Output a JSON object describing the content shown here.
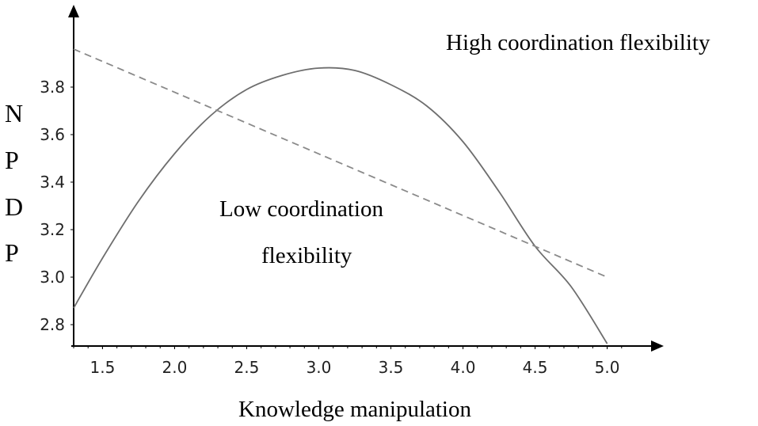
{
  "chart_data": {
    "type": "line",
    "xlabel": "Knowledge manipulation",
    "ylabel": "NPDP",
    "ylabel_letters": [
      "N",
      "P",
      "D",
      "P"
    ],
    "x_ticks": [
      "1.5",
      "2.0",
      "2.5",
      "3.0",
      "3.5",
      "4.0",
      "4.5",
      "5.0"
    ],
    "y_ticks": [
      "2.8",
      "3.0",
      "3.2",
      "3.4",
      "3.6",
      "3.8"
    ],
    "xlim": [
      1.3,
      5.2
    ],
    "ylim": [
      2.71,
      4.05
    ],
    "series": [
      {
        "label": "High coordination flexibility",
        "style": "solid",
        "x": [
          1.3,
          1.5,
          1.75,
          2.0,
          2.25,
          2.5,
          2.75,
          3.0,
          3.25,
          3.5,
          3.75,
          4.0,
          4.25,
          4.5,
          4.75,
          5.0
        ],
        "y": [
          2.87,
          3.08,
          3.32,
          3.52,
          3.68,
          3.79,
          3.85,
          3.88,
          3.87,
          3.81,
          3.72,
          3.57,
          3.36,
          3.13,
          2.96,
          2.72
        ]
      },
      {
        "label": "Low coordination flexibility",
        "style": "dashed",
        "x": [
          1.3,
          5.0
        ],
        "y": [
          3.96,
          3.0
        ]
      }
    ],
    "annotations": [
      {
        "text": "High coordination flexibility"
      },
      {
        "text": "Low coordination"
      },
      {
        "text": "flexibility"
      }
    ],
    "colors": {
      "solid": "#6e6e6e",
      "dashed": "#8a8a8a",
      "axis": "#000000"
    }
  }
}
